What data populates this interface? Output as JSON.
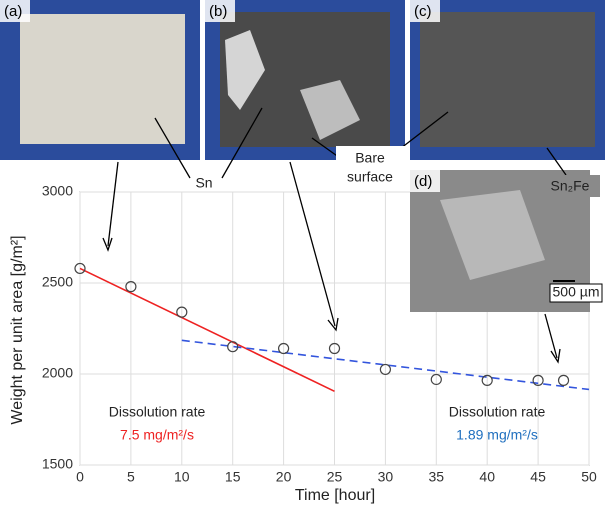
{
  "panels": {
    "a": "(a)",
    "b": "(b)",
    "c": "(c)",
    "d": "(d)"
  },
  "callouts": {
    "sn": "Sn",
    "bare_surface": [
      "Bare",
      "surface"
    ],
    "sn2fe": "Sn₂Fe"
  },
  "scale_bar": "500 µm",
  "chart_data": {
    "type": "scatter",
    "x_label": "Time [hour]",
    "y_label": "Weight per unit area [g/m²]",
    "x": [
      0,
      5,
      10,
      15,
      20,
      25,
      30,
      35,
      40,
      45,
      47.5
    ],
    "values": [
      2580,
      2480,
      2340,
      2150,
      2140,
      2140,
      2025,
      1970,
      1965,
      1965,
      1965
    ],
    "marker_color": "#444444",
    "fit_lines": [
      {
        "x": [
          0,
          25
        ],
        "values": [
          2580,
          1905
        ],
        "color": "#ee2222",
        "dashed": false
      },
      {
        "x": [
          10,
          50
        ],
        "values": [
          2185,
          1915
        ],
        "color": "#3355dd",
        "dashed": true
      }
    ],
    "annotations": [
      {
        "title": "Dissolution rate",
        "rate": "7.5 mg/m²/s",
        "color": "#ee2222"
      },
      {
        "title": "Dissolution rate",
        "rate": "1.89 mg/m²/s",
        "color": "#1f6fbf"
      }
    ],
    "xlim": [
      0,
      50
    ],
    "xticks": [
      0,
      5,
      10,
      15,
      20,
      25,
      30,
      35,
      40,
      45,
      50
    ],
    "ylim": [
      1500,
      3000
    ],
    "yticks": [
      1500,
      2000,
      2500,
      3000
    ],
    "grid": true
  }
}
